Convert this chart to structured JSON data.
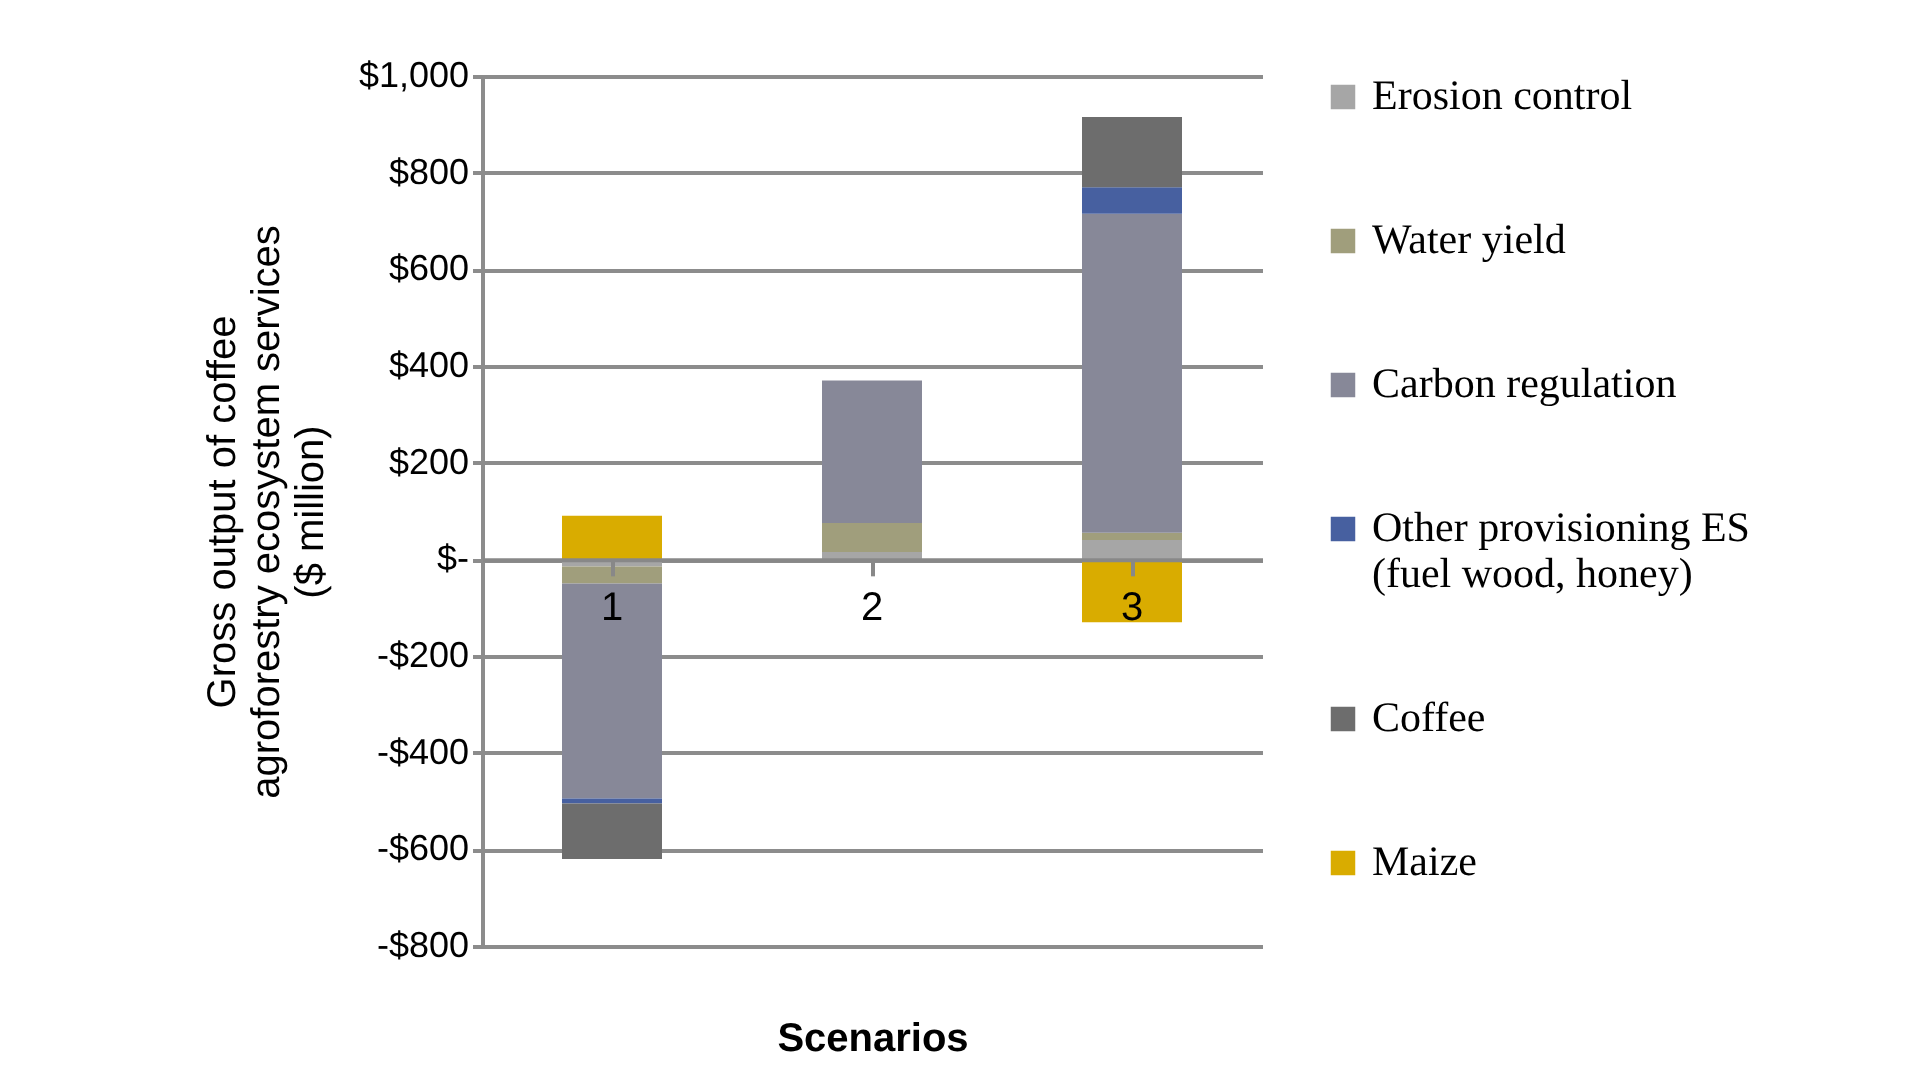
{
  "chart_data": {
    "type": "bar",
    "stacked": true,
    "xlabel": "Scenarios",
    "ylabel": "Gross output of coffee\nagroforestry ecosystem services\n($ million)",
    "categories": [
      "1",
      "2",
      "3"
    ],
    "series": [
      {
        "name": "Erosion control",
        "color": "#a6a6a6",
        "values": [
          -15,
          15,
          40
        ]
      },
      {
        "name": "Water yield",
        "color": "#a09e7c",
        "values": [
          -35,
          60,
          15
        ]
      },
      {
        "name": "Carbon regulation",
        "color": "#878898",
        "values": [
          -445,
          295,
          660
        ]
      },
      {
        "name": "Other provisioning ES\n(fuel wood, honey)",
        "color": "#4760a0",
        "values": [
          -10,
          null,
          55
        ]
      },
      {
        "name": "Coffee",
        "color": "#6d6d6d",
        "values": [
          -115,
          null,
          145
        ]
      },
      {
        "name": "Maize",
        "color": "#d9ac00",
        "values": [
          90,
          null,
          -130
        ]
      }
    ],
    "ylim": [
      -800,
      1000
    ],
    "yticks": [
      {
        "value": -800,
        "label": "-$800"
      },
      {
        "value": -600,
        "label": "-$600"
      },
      {
        "value": -400,
        "label": "-$400"
      },
      {
        "value": -200,
        "label": "-$200"
      },
      {
        "value": 0,
        "label": "$-"
      },
      {
        "value": 200,
        "label": "$200"
      },
      {
        "value": 400,
        "label": "$400"
      },
      {
        "value": 600,
        "label": "$600"
      },
      {
        "value": 800,
        "label": "$800"
      },
      {
        "value": 1000,
        "label": "$1,000"
      }
    ],
    "grid": "y",
    "legend": "right"
  }
}
